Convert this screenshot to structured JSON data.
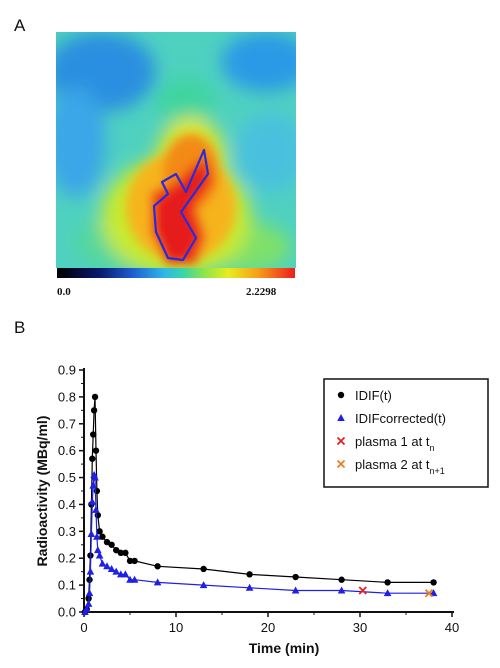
{
  "panel_a": {
    "label": "A",
    "colorbar": {
      "min_label": "0.0",
      "max_label": "2.2298"
    }
  },
  "panel_b": {
    "label": "B"
  },
  "colors": {
    "idif": "#000000",
    "idif_corrected": "#1f1fe6",
    "plasma1": "#e62020",
    "plasma2": "#f07b1a",
    "roi_outline": "#2a2ad8"
  },
  "chart_data": {
    "type": "line",
    "xlabel": "Time (min)",
    "ylabel": "Radioactivity (MBq/ml)",
    "xlim": [
      0,
      40
    ],
    "ylim": [
      0,
      0.9
    ],
    "xticks": [
      "0",
      "10",
      "20",
      "30",
      "40"
    ],
    "yticks": [
      "0.0",
      "0.1",
      "0.2",
      "0.3",
      "0.4",
      "0.5",
      "0.6",
      "0.7",
      "0.8",
      "0.9"
    ],
    "legend_position": "top-right",
    "series": [
      {
        "name": "IDIF(t)",
        "marker": "circle",
        "color": "#000000",
        "x": [
          0.1,
          0.3,
          0.5,
          0.6,
          0.7,
          0.8,
          0.9,
          1.0,
          1.1,
          1.2,
          1.3,
          1.4,
          1.5,
          1.7,
          2.0,
          2.5,
          3.0,
          3.5,
          4.0,
          4.5,
          5.0,
          5.5,
          8.0,
          13.0,
          18.0,
          23.0,
          28.0,
          33.0,
          38.0
        ],
        "y": [
          0.0,
          0.01,
          0.05,
          0.12,
          0.21,
          0.4,
          0.57,
          0.66,
          0.75,
          0.8,
          0.6,
          0.45,
          0.36,
          0.3,
          0.28,
          0.26,
          0.25,
          0.23,
          0.22,
          0.22,
          0.19,
          0.19,
          0.17,
          0.16,
          0.14,
          0.13,
          0.12,
          0.11,
          0.11
        ]
      },
      {
        "name": "IDIFcorrected(t)",
        "marker": "triangle",
        "color": "#1f1fe6",
        "x": [
          0.1,
          0.3,
          0.5,
          0.6,
          0.7,
          0.8,
          0.9,
          1.0,
          1.1,
          1.2,
          1.3,
          1.4,
          1.5,
          1.7,
          2.0,
          2.5,
          3.0,
          3.5,
          4.0,
          4.5,
          5.0,
          5.5,
          8.0,
          13.0,
          18.0,
          23.0,
          28.0,
          33.0,
          38.0
        ],
        "y": [
          0.0,
          0.01,
          0.03,
          0.07,
          0.15,
          0.29,
          0.41,
          0.47,
          0.51,
          0.5,
          0.38,
          0.28,
          0.23,
          0.21,
          0.18,
          0.17,
          0.16,
          0.15,
          0.14,
          0.14,
          0.12,
          0.12,
          0.11,
          0.1,
          0.09,
          0.08,
          0.08,
          0.07,
          0.07
        ]
      },
      {
        "name": "plasma 1 at t",
        "name_sub": "n",
        "marker": "x",
        "color": "#e62020",
        "x": [
          30.3
        ],
        "y": [
          0.08
        ]
      },
      {
        "name": "plasma 2 at t",
        "name_sub": "n+1",
        "marker": "x",
        "color": "#f07b1a",
        "x": [
          37.5
        ],
        "y": [
          0.07
        ]
      }
    ]
  }
}
